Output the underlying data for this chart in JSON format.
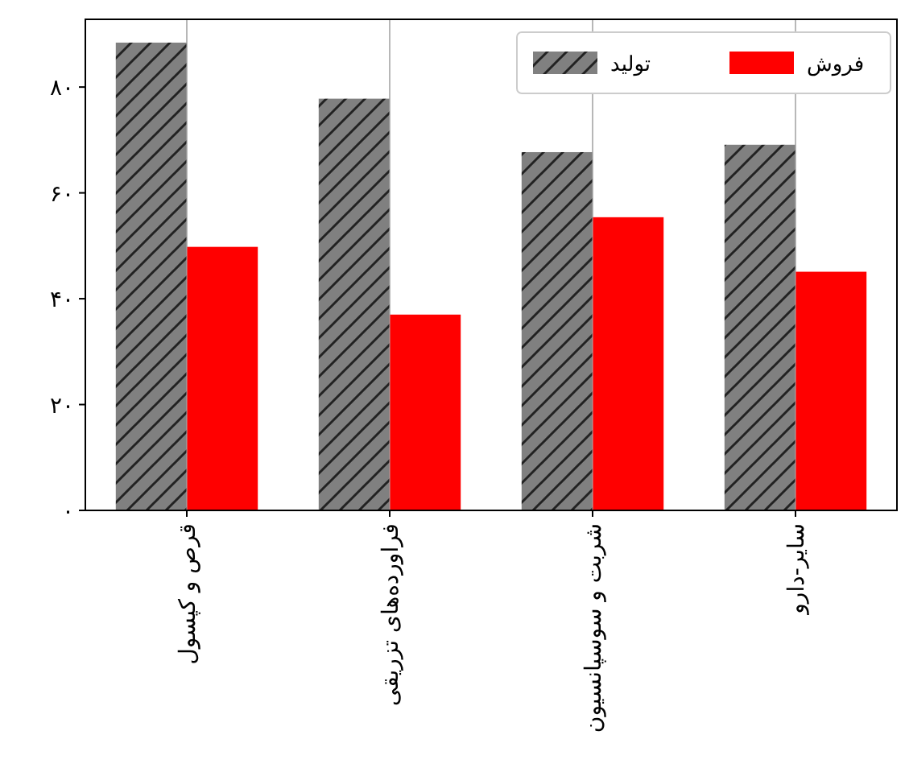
{
  "chart_data": {
    "type": "bar",
    "categories": [
      "قرص و کپسول",
      "فراورده‌های تزریقی",
      "شربت و سوسپانسیون",
      "سایر-دارو"
    ],
    "series": [
      {
        "name": "تولید",
        "color": "#808080",
        "values": [
          88.4,
          77.8,
          67.7,
          69.1
        ]
      },
      {
        "name": "فروش",
        "color": "#ff0000",
        "values": [
          49.8,
          37.0,
          55.4,
          45.1
        ]
      }
    ],
    "ylim": [
      0,
      92.8
    ],
    "yticks": [
      {
        "value": 0,
        "label": "۰"
      },
      {
        "value": 20,
        "label": "۲۰"
      },
      {
        "value": 40,
        "label": "۴۰"
      },
      {
        "value": 60,
        "label": "۶۰"
      },
      {
        "value": 80,
        "label": "۸۰"
      }
    ],
    "grid": "x",
    "legend": "top right"
  }
}
